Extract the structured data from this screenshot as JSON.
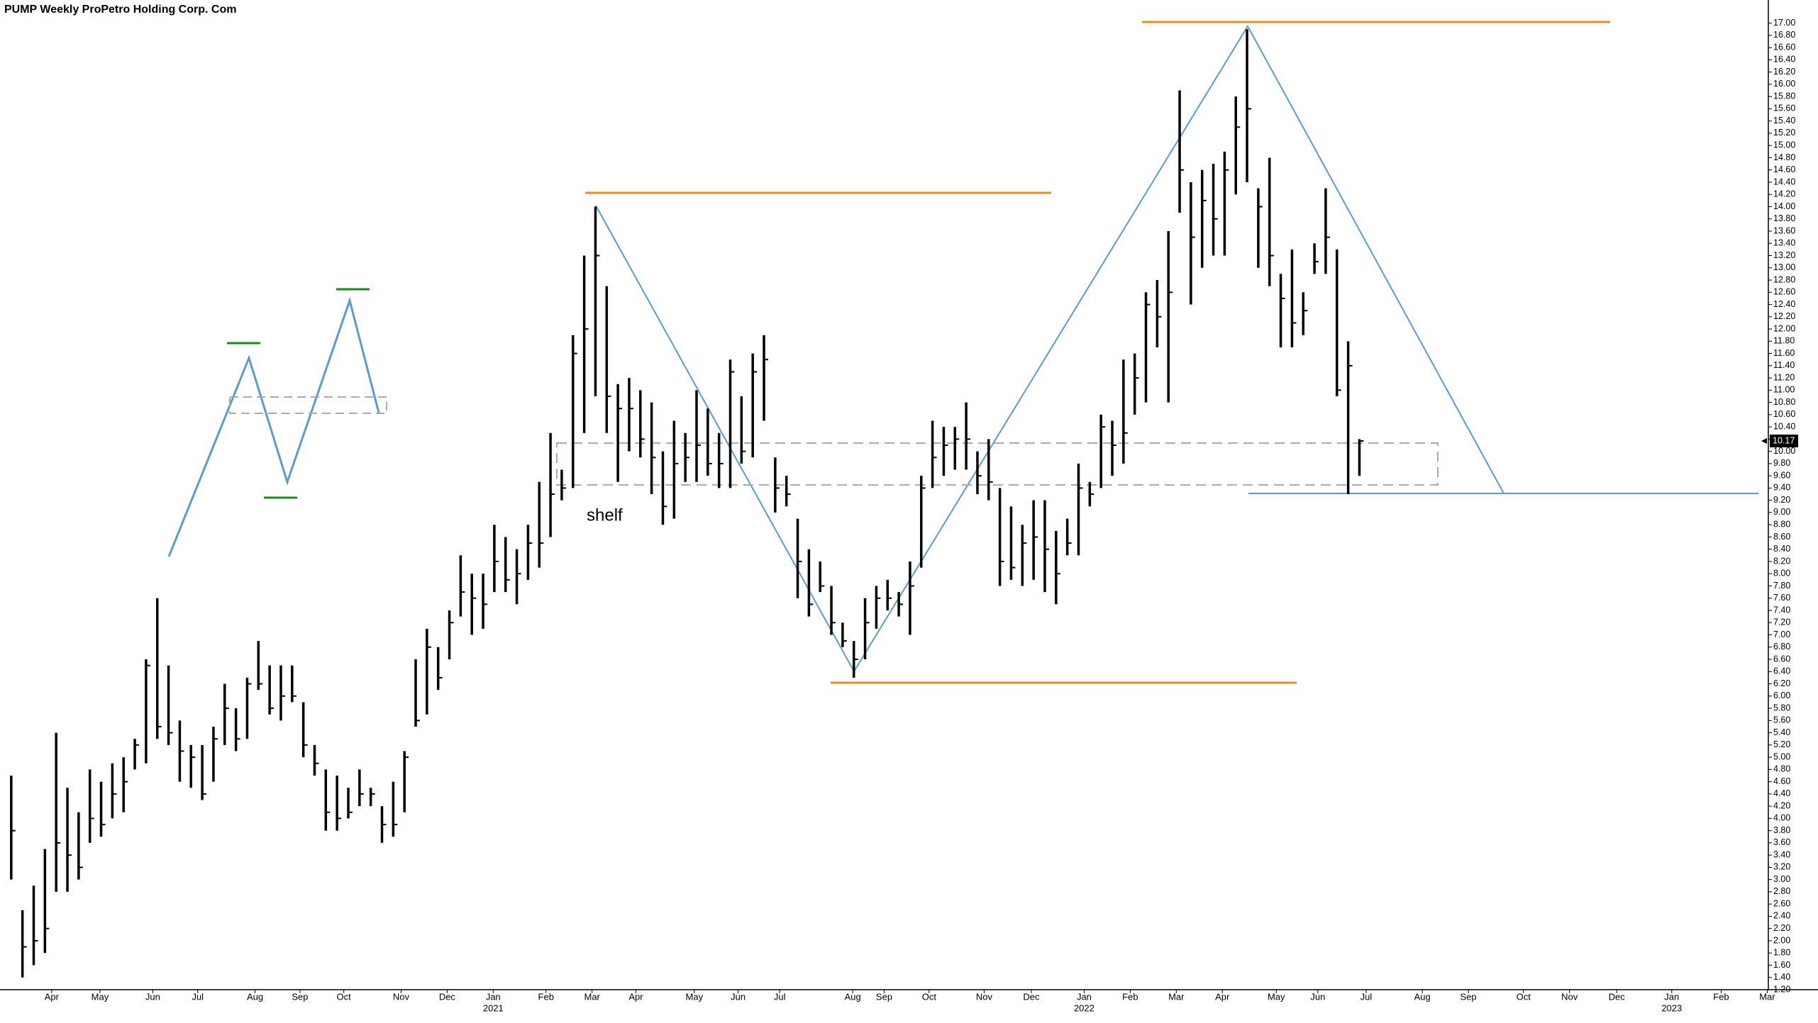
{
  "chart_data": {
    "type": "ohlc",
    "title": "PUMP Weekly ProPetro Holding Corp. Com",
    "annotation": "shelf",
    "color": "#000000",
    "high": [
      4.7,
      2.5,
      2.9,
      3.5,
      5.4,
      4.5,
      4.1,
      4.8,
      4.6,
      4.9,
      5.0,
      5.3,
      6.6,
      7.6,
      6.5,
      5.6,
      5.2,
      5.2,
      5.5,
      6.2,
      5.8,
      6.3,
      6.9,
      6.5,
      6.5,
      6.5,
      5.9,
      5.2,
      4.8,
      4.7,
      4.5,
      4.8,
      4.5,
      4.2,
      4.6,
      5.1,
      6.6,
      7.1,
      6.8,
      7.4,
      8.3,
      8.0,
      8.0,
      8.8,
      8.6,
      8.4,
      8.8,
      9.5,
      10.3,
      9.7,
      11.9,
      13.2,
      14.0,
      12.7,
      11.1,
      11.2,
      11.0,
      10.8,
      10.0,
      10.5,
      10.3,
      11.0,
      10.7,
      10.3,
      11.5,
      10.9,
      11.6,
      11.9,
      9.9,
      9.6,
      8.9,
      8.4,
      8.2,
      7.8,
      7.2,
      6.9,
      7.6,
      7.8,
      7.9,
      7.7,
      8.2,
      9.6,
      10.5,
      10.4,
      10.4,
      10.8,
      10.0,
      10.2,
      9.4,
      9.1,
      8.8,
      9.2,
      9.2,
      8.7,
      8.9,
      9.8,
      9.5,
      10.6,
      10.5,
      11.5,
      11.6,
      12.6,
      12.8,
      13.6,
      15.9,
      14.4,
      14.6,
      14.7,
      14.9,
      15.8,
      16.9,
      14.3,
      14.8,
      12.9,
      13.3,
      12.6,
      13.4,
      14.3,
      13.3,
      11.8,
      10.2
    ],
    "low": [
      3.0,
      1.4,
      1.6,
      1.8,
      2.8,
      2.8,
      3.0,
      3.6,
      3.7,
      4.0,
      4.1,
      4.8,
      4.9,
      5.3,
      5.2,
      4.6,
      4.5,
      4.3,
      4.6,
      5.2,
      5.1,
      5.3,
      6.1,
      5.7,
      5.6,
      5.9,
      5.0,
      4.7,
      3.8,
      3.8,
      4.0,
      4.2,
      4.2,
      3.6,
      3.7,
      4.1,
      5.5,
      5.7,
      6.1,
      6.6,
      7.3,
      7.0,
      7.1,
      7.7,
      7.7,
      7.5,
      7.9,
      8.1,
      8.6,
      9.2,
      9.4,
      10.3,
      10.9,
      10.3,
      9.5,
      10.0,
      9.9,
      9.3,
      8.8,
      8.9,
      9.5,
      9.5,
      9.6,
      9.4,
      9.4,
      9.8,
      9.9,
      10.5,
      9.0,
      9.1,
      7.6,
      7.3,
      7.7,
      7.0,
      6.8,
      6.3,
      6.6,
      7.1,
      7.4,
      7.3,
      7.0,
      8.1,
      9.4,
      9.6,
      9.7,
      9.7,
      9.3,
      9.2,
      7.8,
      7.9,
      7.8,
      7.9,
      7.7,
      7.5,
      8.3,
      8.3,
      9.1,
      9.4,
      9.6,
      9.8,
      10.6,
      10.8,
      11.7,
      10.8,
      13.9,
      12.4,
      13.0,
      13.2,
      13.2,
      14.2,
      14.4,
      13.0,
      12.7,
      11.7,
      11.7,
      11.9,
      12.9,
      12.9,
      10.9,
      9.3,
      9.6
    ],
    "close": [
      3.8,
      1.9,
      2.0,
      2.2,
      3.6,
      3.4,
      3.2,
      4.0,
      3.9,
      4.4,
      4.6,
      5.2,
      6.5,
      5.5,
      5.4,
      5.1,
      5.0,
      4.4,
      5.3,
      5.8,
      5.3,
      6.2,
      6.2,
      5.8,
      6.0,
      6.0,
      5.2,
      4.9,
      4.1,
      4.0,
      4.1,
      4.4,
      4.4,
      3.9,
      3.9,
      5.0,
      5.6,
      6.8,
      6.3,
      7.2,
      7.7,
      7.6,
      7.5,
      8.2,
      7.9,
      8.0,
      8.5,
      8.5,
      9.3,
      9.4,
      11.6,
      12.0,
      13.2,
      10.9,
      10.7,
      10.7,
      10.2,
      9.9,
      9.1,
      9.8,
      9.9,
      10.1,
      9.8,
      9.8,
      11.3,
      10.0,
      11.3,
      11.5,
      9.4,
      9.3,
      8.2,
      7.5,
      7.8,
      7.2,
      6.9,
      6.6,
      7.2,
      7.6,
      7.6,
      7.5,
      7.8,
      9.4,
      9.9,
      10.1,
      10.2,
      10.2,
      9.6,
      9.5,
      8.2,
      8.1,
      8.5,
      8.6,
      8.4,
      8.0,
      8.5,
      9.4,
      9.3,
      10.4,
      10.1,
      10.3,
      11.2,
      12.4,
      12.2,
      12.6,
      14.6,
      13.5,
      14.1,
      13.8,
      14.6,
      15.3,
      15.6,
      14.0,
      13.2,
      12.5,
      12.1,
      12.3,
      13.1,
      13.5,
      11.0,
      11.4,
      10.17
    ],
    "xlim": [
      -1,
      156.4
    ],
    "xticks": [
      {
        "value": 3.6,
        "label": "Apr"
      },
      {
        "value": 7.9,
        "label": "May"
      },
      {
        "value": 12.6,
        "label": "Jun"
      },
      {
        "value": 16.6,
        "label": "Jul"
      },
      {
        "value": 21.7,
        "label": "Aug"
      },
      {
        "value": 25.7,
        "label": "Sep"
      },
      {
        "value": 29.6,
        "label": "Oct"
      },
      {
        "value": 34.7,
        "label": "Nov"
      },
      {
        "value": 38.8,
        "label": "Dec"
      },
      {
        "value": 42.9,
        "label": "Jan"
      },
      {
        "value": 47.6,
        "label": "Feb"
      },
      {
        "value": 51.7,
        "label": "Mar"
      },
      {
        "value": 55.6,
        "label": "Apr"
      },
      {
        "value": 60.8,
        "label": "May"
      },
      {
        "value": 64.7,
        "label": "Jun"
      },
      {
        "value": 68.4,
        "label": "Jul"
      },
      {
        "value": 74.9,
        "label": "Aug"
      },
      {
        "value": 77.7,
        "label": "Sep"
      },
      {
        "value": 81.7,
        "label": "Oct"
      },
      {
        "value": 86.6,
        "label": "Nov"
      },
      {
        "value": 90.8,
        "label": "Dec"
      },
      {
        "value": 95.5,
        "label": "Jan"
      },
      {
        "value": 99.6,
        "label": "Feb"
      },
      {
        "value": 103.7,
        "label": "Mar"
      },
      {
        "value": 107.8,
        "label": "Apr"
      },
      {
        "value": 112.6,
        "label": "May"
      },
      {
        "value": 116.3,
        "label": "Jun"
      },
      {
        "value": 120.6,
        "label": "Jul"
      },
      {
        "value": 125.6,
        "label": "Aug"
      },
      {
        "value": 129.7,
        "label": "Sep"
      },
      {
        "value": 134.6,
        "label": "Oct"
      },
      {
        "value": 138.7,
        "label": "Nov"
      },
      {
        "value": 142.9,
        "label": "Dec"
      },
      {
        "value": 147.8,
        "label": "Jan"
      },
      {
        "value": 152.2,
        "label": "Feb"
      },
      {
        "value": 156.3,
        "label": "Mar"
      }
    ],
    "year_labels": [
      {
        "value": 42.9,
        "label": "2021"
      },
      {
        "value": 95.5,
        "label": "2022"
      },
      {
        "value": 147.8,
        "label": "2023"
      }
    ],
    "ylim": [
      1.2,
      17.1
    ],
    "yticks": [
      {
        "value": 1.2,
        "label": "1.20"
      },
      {
        "value": 1.4,
        "label": "1.40"
      },
      {
        "value": 1.6,
        "label": "1.60"
      },
      {
        "value": 1.8,
        "label": "1.80"
      },
      {
        "value": 2.0,
        "label": "2.00"
      },
      {
        "value": 2.2,
        "label": "2.20"
      },
      {
        "value": 2.4,
        "label": "2.40"
      },
      {
        "value": 2.6,
        "label": "2.60"
      },
      {
        "value": 2.8,
        "label": "2.80"
      },
      {
        "value": 3.0,
        "label": "3.00"
      },
      {
        "value": 3.2,
        "label": "3.20"
      },
      {
        "value": 3.4,
        "label": "3.40"
      },
      {
        "value": 3.6,
        "label": "3.60"
      },
      {
        "value": 3.8,
        "label": "3.80"
      },
      {
        "value": 4.0,
        "label": "4.00"
      },
      {
        "value": 4.2,
        "label": "4.20"
      },
      {
        "value": 4.4,
        "label": "4.40"
      },
      {
        "value": 4.6,
        "label": "4.60"
      },
      {
        "value": 4.8,
        "label": "4.80"
      },
      {
        "value": 5.0,
        "label": "5.00"
      },
      {
        "value": 5.2,
        "label": "5.20"
      },
      {
        "value": 5.4,
        "label": "5.40"
      },
      {
        "value": 5.6,
        "label": "5.60"
      },
      {
        "value": 5.8,
        "label": "5.80"
      },
      {
        "value": 6.0,
        "label": "6.00"
      },
      {
        "value": 6.2,
        "label": "6.20"
      },
      {
        "value": 6.4,
        "label": "6.40"
      },
      {
        "value": 6.6,
        "label": "6.60"
      },
      {
        "value": 6.8,
        "label": "6.80"
      },
      {
        "value": 7.0,
        "label": "7.00"
      },
      {
        "value": 7.2,
        "label": "7.20"
      },
      {
        "value": 7.4,
        "label": "7.40"
      },
      {
        "value": 7.6,
        "label": "7.60"
      },
      {
        "value": 7.8,
        "label": "7.80"
      },
      {
        "value": 8.0,
        "label": "8.00"
      },
      {
        "value": 8.2,
        "label": "8.20"
      },
      {
        "value": 8.4,
        "label": "8.40"
      },
      {
        "value": 8.6,
        "label": "8.60"
      },
      {
        "value": 8.8,
        "label": "8.80"
      },
      {
        "value": 9.0,
        "label": "9.00"
      },
      {
        "value": 9.2,
        "label": "9.20"
      },
      {
        "value": 9.4,
        "label": "9.40"
      },
      {
        "value": 9.6,
        "label": "9.60"
      },
      {
        "value": 9.8,
        "label": "9.80"
      },
      {
        "value": 10.0,
        "label": "10.00"
      },
      {
        "value": 10.2,
        "label": "10.20"
      },
      {
        "value": 10.4,
        "label": "10.40"
      },
      {
        "value": 10.6,
        "label": "10.60"
      },
      {
        "value": 10.8,
        "label": "10.80"
      },
      {
        "value": 11.0,
        "label": "11.00"
      },
      {
        "value": 11.2,
        "label": "11.20"
      },
      {
        "value": 11.4,
        "label": "11.40"
      },
      {
        "value": 11.6,
        "label": "11.60"
      },
      {
        "value": 11.8,
        "label": "11.80"
      },
      {
        "value": 12.0,
        "label": "12.00"
      },
      {
        "value": 12.2,
        "label": "12.20"
      },
      {
        "value": 12.4,
        "label": "12.40"
      },
      {
        "value": 12.6,
        "label": "12.60"
      },
      {
        "value": 12.8,
        "label": "12.80"
      },
      {
        "value": 13.0,
        "label": "13.00"
      },
      {
        "value": 13.2,
        "label": "13.20"
      },
      {
        "value": 13.4,
        "label": "13.40"
      },
      {
        "value": 13.6,
        "label": "13.60"
      },
      {
        "value": 13.8,
        "label": "13.80"
      },
      {
        "value": 14.0,
        "label": "14.00"
      },
      {
        "value": 14.2,
        "label": "14.20"
      },
      {
        "value": 14.4,
        "label": "14.40"
      },
      {
        "value": 14.6,
        "label": "14.60"
      },
      {
        "value": 14.8,
        "label": "14.80"
      },
      {
        "value": 15.0,
        "label": "15.00"
      },
      {
        "value": 15.2,
        "label": "15.20"
      },
      {
        "value": 15.4,
        "label": "15.40"
      },
      {
        "value": 15.6,
        "label": "15.60"
      },
      {
        "value": 15.8,
        "label": "15.80"
      },
      {
        "value": 16.0,
        "label": "16.00"
      },
      {
        "value": 16.2,
        "label": "16.20"
      },
      {
        "value": 16.4,
        "label": "16.40"
      },
      {
        "value": 16.6,
        "label": "16.60"
      },
      {
        "value": 16.8,
        "label": "16.80"
      },
      {
        "value": 17.0,
        "label": "17.00"
      }
    ],
    "grid": false
  }
}
